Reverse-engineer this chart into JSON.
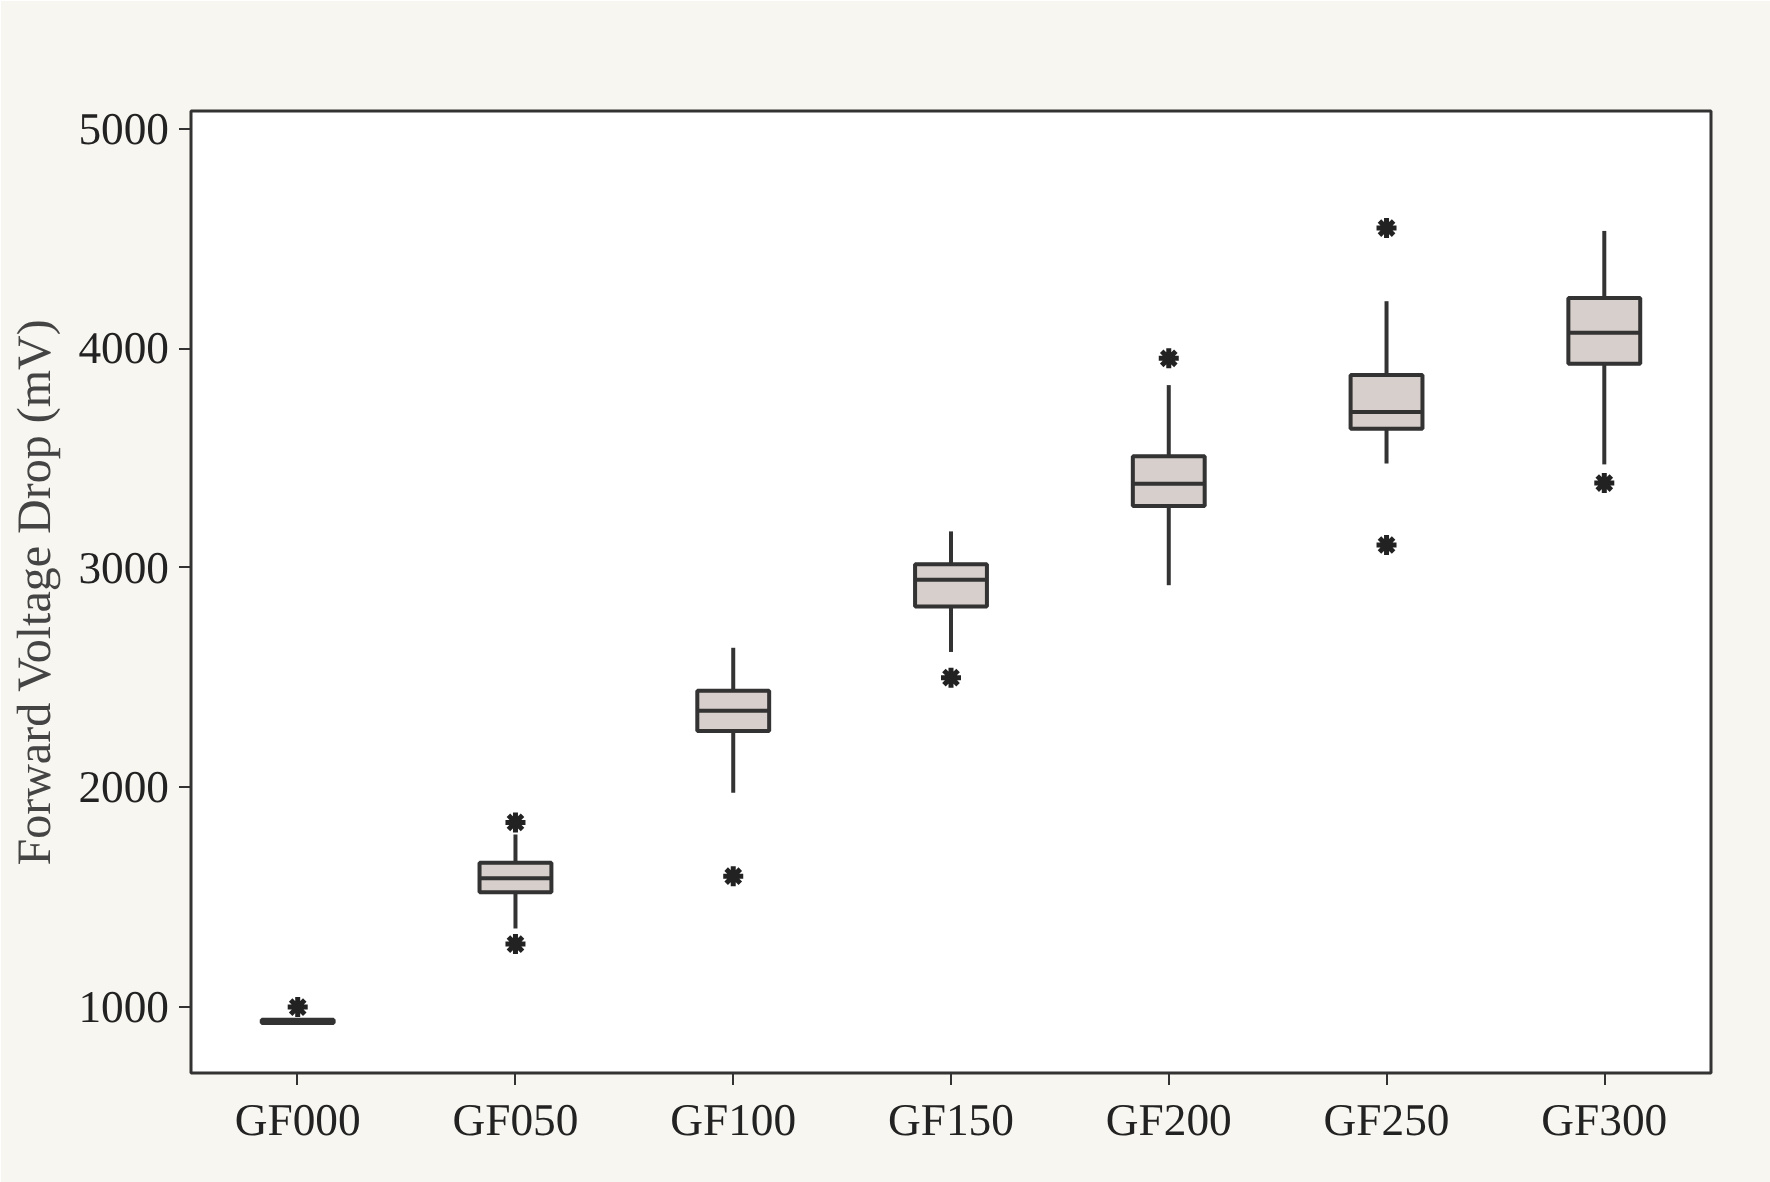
{
  "chart_data": {
    "type": "box",
    "ylabel": "Forward Voltage Drop (mV)",
    "categories": [
      "GF000",
      "GF050",
      "GF100",
      "GF150",
      "GF200",
      "GF250",
      "GF300"
    ],
    "color": "#d6cfcb",
    "boxes": [
      {
        "low": 928,
        "q1": 928,
        "median": 935,
        "q3": 942,
        "high": 942,
        "outliers": [
          1000
        ]
      },
      {
        "low": 1358,
        "q1": 1523,
        "median": 1587,
        "q3": 1657,
        "high": 1786,
        "outliers": [
          1841,
          1287
        ]
      },
      {
        "low": 1976,
        "q1": 2257,
        "median": 2349,
        "q3": 2440,
        "high": 2636,
        "outliers": [
          1596
        ]
      },
      {
        "low": 2617,
        "q1": 2824,
        "median": 2946,
        "q3": 3016,
        "high": 3166,
        "outliers": [
          2500
        ]
      },
      {
        "low": 2921,
        "q1": 3282,
        "median": 3383,
        "q3": 3508,
        "high": 3832,
        "outliers": [
          3954
        ]
      },
      {
        "low": 3475,
        "q1": 3633,
        "median": 3710,
        "q3": 3878,
        "high": 4214,
        "outliers": [
          4547,
          3104
        ]
      },
      {
        "low": 3471,
        "q1": 3929,
        "median": 4070,
        "q3": 4229,
        "high": 4534,
        "outliers": [
          3386
        ]
      }
    ],
    "ylim": [
      700,
      5080
    ],
    "yticks": [
      1000,
      2000,
      3000,
      4000,
      5000
    ],
    "grid": false
  }
}
